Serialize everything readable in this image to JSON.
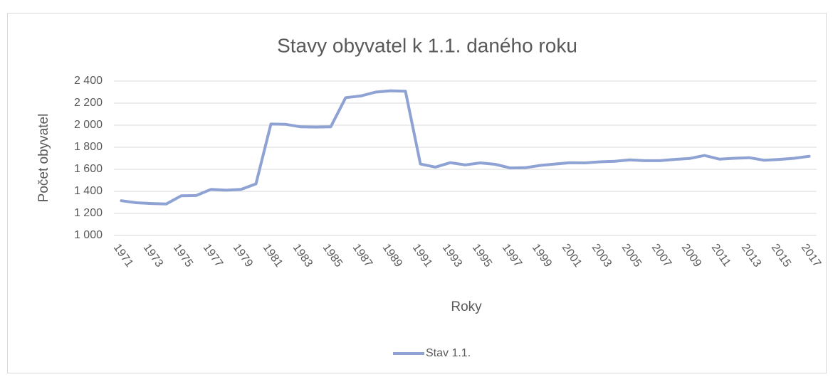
{
  "chart_data": {
    "type": "line",
    "title": "Stavy obyvatel k 1.1. daného roku",
    "x_label": "Roky",
    "y_label": "Počet obyvatel",
    "categories": [
      "1971",
      null,
      "1973",
      null,
      "1975",
      null,
      "1977",
      null,
      "1979",
      null,
      "1981",
      null,
      "1983",
      null,
      "1985",
      null,
      "1987",
      null,
      "1989",
      null,
      "1991",
      null,
      "1993",
      null,
      "1995",
      null,
      "1997",
      null,
      "1999",
      null,
      "2001",
      null,
      "2003",
      null,
      "2005",
      null,
      "2007",
      null,
      "2009",
      null,
      "2011",
      null,
      "2013",
      null,
      "2015",
      null,
      "2017"
    ],
    "series": [
      {
        "name": "Stav 1.1.",
        "color": "#8fa2d4",
        "values": [
          1315,
          1297,
          1290,
          1285,
          1360,
          1362,
          1418,
          1410,
          1418,
          1468,
          2010,
          2008,
          1985,
          1983,
          1985,
          2250,
          2265,
          2300,
          2312,
          2308,
          1648,
          1620,
          1660,
          1640,
          1658,
          1645,
          1612,
          1614,
          1635,
          1648,
          1660,
          1658,
          1668,
          1672,
          1686,
          1678,
          1678,
          1690,
          1698,
          1725,
          1692,
          1700,
          1705,
          1682,
          1690,
          1700,
          1718
        ]
      }
    ],
    "ylim": [
      1000,
      2400
    ],
    "yticks": [
      {
        "value": 1000,
        "label": "1 000"
      },
      {
        "value": 1200,
        "label": "1 200"
      },
      {
        "value": 1400,
        "label": "1 400"
      },
      {
        "value": 1600,
        "label": "1 600"
      },
      {
        "value": 1800,
        "label": "1 800"
      },
      {
        "value": 2000,
        "label": "2 000"
      },
      {
        "value": 2200,
        "label": "2 200"
      },
      {
        "value": 2400,
        "label": "2 400"
      }
    ],
    "grid": true,
    "legend": "bottom"
  }
}
